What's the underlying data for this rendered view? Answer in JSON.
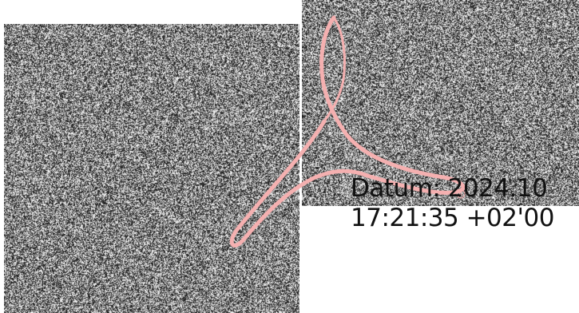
{
  "signature": {
    "date_line": "Datum: 2024.10",
    "time_line": "17:21:35 +02'00"
  },
  "colors": {
    "acrobat_mark": "#f4b0b0",
    "noise_dark": "#1a1a1a",
    "noise_light": "#f0f0f0"
  },
  "icons": {
    "mark": "adobe-acrobat-logo-icon",
    "registered": "registered-trademark-icon"
  }
}
